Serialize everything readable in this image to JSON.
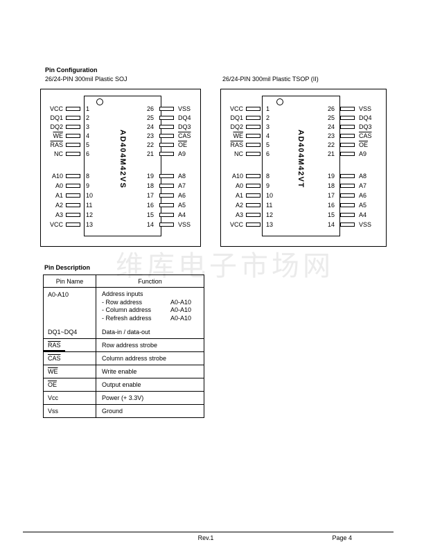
{
  "watermark": {
    "text": "维库电子市场网",
    "color": "#ebebeb"
  },
  "section_config": {
    "title": "Pin Configuration"
  },
  "section_desc": {
    "title": "Pin Description"
  },
  "diagrams": [
    {
      "subtitle": "26/24-PIN 300mil Plastic SOJ",
      "chip_label": "AD404M42VS",
      "left_a": [
        {
          "label": "VCC",
          "num": "1"
        },
        {
          "label": "DQ1",
          "num": "2"
        },
        {
          "label": "DQ2",
          "num": "3"
        },
        {
          "label": "WE",
          "num": "4",
          "overline": true
        },
        {
          "label": "RAS",
          "num": "5",
          "overline": true
        },
        {
          "label": "NC",
          "num": "6"
        }
      ],
      "left_b": [
        {
          "label": "A10",
          "num": "8"
        },
        {
          "label": "A0",
          "num": "9"
        },
        {
          "label": "A1",
          "num": "10"
        },
        {
          "label": "A2",
          "num": "11"
        },
        {
          "label": "A3",
          "num": "12"
        },
        {
          "label": "VCC",
          "num": "13"
        }
      ],
      "right_a": [
        {
          "num": "26",
          "label": "VSS"
        },
        {
          "num": "25",
          "label": "DQ4"
        },
        {
          "num": "24",
          "label": "DQ3"
        },
        {
          "num": "23",
          "label": "CAS",
          "overline": true
        },
        {
          "num": "22",
          "label": "OE",
          "overline": true
        },
        {
          "num": "21",
          "label": "A9"
        }
      ],
      "right_b": [
        {
          "num": "19",
          "label": "A8"
        },
        {
          "num": "18",
          "label": "A7"
        },
        {
          "num": "17",
          "label": "A6"
        },
        {
          "num": "16",
          "label": "A5"
        },
        {
          "num": "15",
          "label": "A4"
        },
        {
          "num": "14",
          "label": "VSS"
        }
      ]
    },
    {
      "subtitle": "26/24-PIN 300mil Plastic TSOP (II)",
      "chip_label": "AD404M42VT",
      "left_a": [
        {
          "label": "VCC",
          "num": "1"
        },
        {
          "label": "DQ1",
          "num": "2"
        },
        {
          "label": "DQ2",
          "num": "3"
        },
        {
          "label": "WE",
          "num": "4",
          "overline": true
        },
        {
          "label": "RAS",
          "num": "5",
          "overline": true
        },
        {
          "label": "NC",
          "num": "6"
        }
      ],
      "left_b": [
        {
          "label": "A10",
          "num": "8"
        },
        {
          "label": "A0",
          "num": "9"
        },
        {
          "label": "A1",
          "num": "10"
        },
        {
          "label": "A2",
          "num": "11"
        },
        {
          "label": "A3",
          "num": "12"
        },
        {
          "label": "VCC",
          "num": "13"
        }
      ],
      "right_a": [
        {
          "num": "26",
          "label": "VSS"
        },
        {
          "num": "25",
          "label": "DQ4"
        },
        {
          "num": "24",
          "label": "DQ3"
        },
        {
          "num": "23",
          "label": "CAS",
          "overline": true
        },
        {
          "num": "22",
          "label": "OE",
          "overline": true
        },
        {
          "num": "21",
          "label": "A9"
        }
      ],
      "right_b": [
        {
          "num": "19",
          "label": "A8"
        },
        {
          "num": "18",
          "label": "A7"
        },
        {
          "num": "17",
          "label": "A6"
        },
        {
          "num": "16",
          "label": "A5"
        },
        {
          "num": "15",
          "label": "A4"
        },
        {
          "num": "14",
          "label": "VSS"
        }
      ]
    }
  ],
  "table": {
    "headers": [
      "Pin Name",
      "Function"
    ],
    "row_a": {
      "pin": "A0-A10",
      "title": "Address inputs",
      "lines": [
        {
          "text": "- Row address",
          "value": "A0-A10"
        },
        {
          "text": "- Column address",
          "value": "A0-A10"
        },
        {
          "text": "- Refresh address",
          "value": "A0-A10"
        }
      ]
    },
    "simple_rows": [
      {
        "pin": "DQ1~DQ4",
        "function": "Data-in / data-out"
      },
      {
        "pin": "RAS",
        "overline": true,
        "stray": true,
        "function": "Row address strobe"
      },
      {
        "pin": "CAS",
        "overline": true,
        "function": "Column address strobe"
      },
      {
        "pin": "WE",
        "overline": true,
        "function": "Write enable"
      },
      {
        "pin": "OE",
        "overline": true,
        "function": "Output enable"
      },
      {
        "pin": "Vcc",
        "function": "Power (+ 3.3V)"
      },
      {
        "pin": "Vss",
        "function": "Ground"
      }
    ]
  },
  "footer": {
    "rev": "Rev.1",
    "page": "Page 4"
  }
}
